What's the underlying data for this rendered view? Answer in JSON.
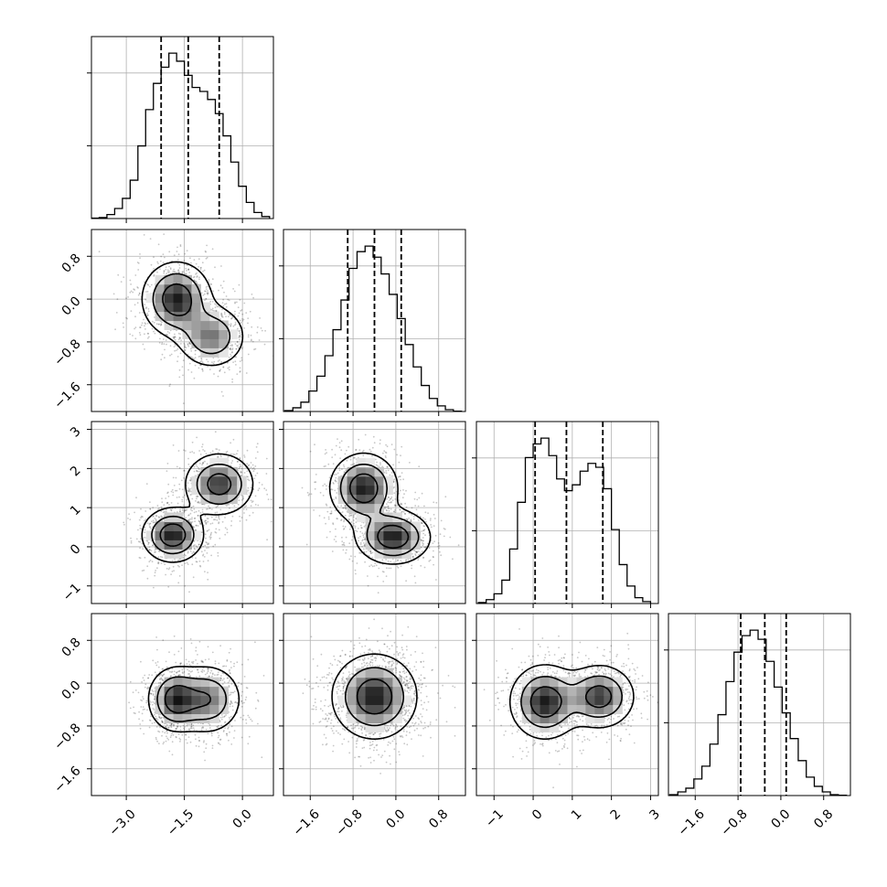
{
  "chart_data": {
    "type": "corner",
    "n_params": 4,
    "grid": true,
    "axis_ranges": [
      [
        -3.9,
        0.8
      ],
      [
        -2.1,
        1.3
      ],
      [
        -1.45,
        3.2
      ],
      [
        -2.1,
        1.3
      ]
    ],
    "ticks": [
      {
        "values": [
          -3.0,
          -1.5,
          0.0
        ],
        "labels": [
          "−3.0",
          "−1.5",
          "0.0"
        ]
      },
      {
        "values": [
          -1.6,
          -0.8,
          0.0,
          0.8
        ],
        "labels": [
          "−1.6",
          "−0.8",
          "0.0",
          "0.8"
        ]
      },
      {
        "values": [
          -1,
          0,
          1,
          2,
          3
        ],
        "labels": [
          "−1",
          "0",
          "1",
          "2",
          "3"
        ]
      },
      {
        "values": [
          -1.6,
          -0.8,
          0.0,
          0.8
        ],
        "labels": [
          "−1.6",
          "−0.8",
          "0.0",
          "0.8"
        ]
      }
    ],
    "quantiles": [
      [
        -2.1,
        -1.4,
        -0.6
      ],
      [
        -0.9,
        -0.4,
        0.1
      ],
      [
        0.05,
        0.85,
        1.78
      ],
      [
        -0.75,
        -0.3,
        0.1
      ]
    ],
    "histograms": [
      {
        "bin_centers": [
          -3.8,
          -3.6,
          -3.4,
          -3.2,
          -3.0,
          -2.8,
          -2.6,
          -2.4,
          -2.2,
          -2.0,
          -1.8,
          -1.6,
          -1.4,
          -1.2,
          -1.0,
          -0.8,
          -0.6,
          -0.4,
          -0.2,
          0.0,
          0.2,
          0.4,
          0.6
        ],
        "counts": [
          0.02,
          0.05,
          0.2,
          0.5,
          1.0,
          1.9,
          3.6,
          5.4,
          6.7,
          7.5,
          8.2,
          7.8,
          7.1,
          6.5,
          6.3,
          5.9,
          5.2,
          4.1,
          2.8,
          1.6,
          0.8,
          0.3,
          0.1
        ]
      },
      {
        "bin_centers": [
          -2.0,
          -1.85,
          -1.7,
          -1.55,
          -1.4,
          -1.25,
          -1.1,
          -0.95,
          -0.8,
          -0.65,
          -0.5,
          -0.35,
          -0.2,
          -0.05,
          0.1,
          0.25,
          0.4,
          0.55,
          0.7,
          0.85,
          1.0,
          1.15
        ],
        "counts": [
          0.05,
          0.2,
          0.5,
          1.1,
          1.9,
          3.0,
          4.4,
          6.0,
          7.7,
          8.6,
          8.9,
          8.3,
          7.4,
          6.3,
          5.0,
          3.6,
          2.4,
          1.4,
          0.7,
          0.3,
          0.1,
          0.02
        ]
      },
      {
        "bin_centers": [
          -1.3,
          -1.1,
          -0.9,
          -0.7,
          -0.5,
          -0.3,
          -0.1,
          0.1,
          0.3,
          0.5,
          0.7,
          0.9,
          1.1,
          1.3,
          1.5,
          1.7,
          1.9,
          2.1,
          2.3,
          2.5,
          2.7,
          2.9
        ],
        "counts": [
          0.05,
          0.2,
          0.5,
          1.2,
          2.8,
          5.2,
          7.5,
          8.2,
          8.5,
          7.6,
          6.4,
          5.8,
          6.1,
          6.8,
          7.2,
          7.0,
          5.9,
          3.8,
          2.0,
          0.9,
          0.3,
          0.1
        ]
      },
      {
        "bin_centers": [
          -2.0,
          -1.85,
          -1.7,
          -1.55,
          -1.4,
          -1.25,
          -1.1,
          -0.95,
          -0.8,
          -0.65,
          -0.5,
          -0.35,
          -0.2,
          -0.05,
          0.1,
          0.25,
          0.4,
          0.55,
          0.7,
          0.85,
          1.0,
          1.15
        ],
        "counts": [
          0.05,
          0.2,
          0.4,
          0.9,
          1.6,
          2.8,
          4.4,
          6.2,
          7.8,
          8.7,
          9.0,
          8.5,
          7.3,
          5.9,
          4.5,
          3.1,
          1.9,
          1.0,
          0.5,
          0.2,
          0.05,
          0.02
        ]
      }
    ],
    "joint_modes": {
      "1,0": [
        {
          "x": -1.7,
          "y": 0.0,
          "w": 1.0,
          "sx": 0.45,
          "sy": 0.35
        },
        {
          "x": -0.8,
          "y": -0.7,
          "w": 0.7,
          "sx": 0.45,
          "sy": 0.3
        }
      ],
      "2,0": [
        {
          "x": -1.8,
          "y": 0.3,
          "w": 1.0,
          "sx": 0.4,
          "sy": 0.35
        },
        {
          "x": -0.6,
          "y": 1.6,
          "w": 0.9,
          "sx": 0.45,
          "sy": 0.4
        }
      ],
      "2,1": [
        {
          "x": -0.6,
          "y": 1.5,
          "w": 0.9,
          "sx": 0.32,
          "sy": 0.45
        },
        {
          "x": -0.05,
          "y": 0.25,
          "w": 0.9,
          "sx": 0.35,
          "sy": 0.35
        }
      ],
      "3,0": [
        {
          "x": -1.75,
          "y": -0.3,
          "w": 1.0,
          "sx": 0.35,
          "sy": 0.3
        },
        {
          "x": -0.9,
          "y": -0.3,
          "w": 0.8,
          "sx": 0.45,
          "sy": 0.33
        }
      ],
      "3,1": [
        {
          "x": -0.4,
          "y": -0.25,
          "w": 1.0,
          "sx": 0.4,
          "sy": 0.4
        }
      ],
      "3,2": [
        {
          "x": 0.3,
          "y": -0.35,
          "w": 1.0,
          "sx": 0.45,
          "sy": 0.35
        },
        {
          "x": 1.7,
          "y": -0.25,
          "w": 0.9,
          "sx": 0.45,
          "sy": 0.3
        }
      ]
    }
  }
}
